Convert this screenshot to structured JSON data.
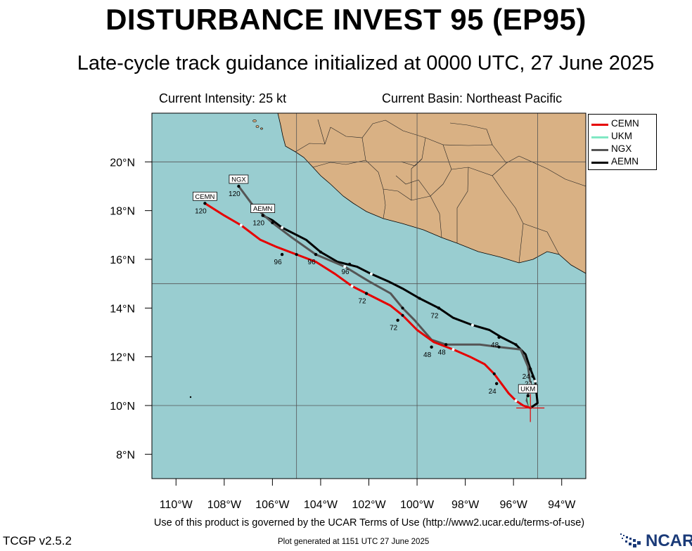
{
  "header": {
    "title": "DISTURBANCE INVEST 95 (EP95)",
    "subtitle": "Late-cycle track guidance initialized at 0000 UTC, 27 June 2025",
    "current_intensity": "Current Intensity: 25 kt",
    "current_basin": "Current Basin: Northeast Pacific"
  },
  "map": {
    "lon_range": [
      -111,
      -93
    ],
    "lat_range": [
      7,
      22
    ],
    "x_ticks": [
      {
        "lon": -110,
        "label": "110°W"
      },
      {
        "lon": -108,
        "label": "108°W"
      },
      {
        "lon": -106,
        "label": "106°W"
      },
      {
        "lon": -104,
        "label": "104°W"
      },
      {
        "lon": -102,
        "label": "102°W"
      },
      {
        "lon": -100,
        "label": "100°W"
      },
      {
        "lon": -98,
        "label": "98°W"
      },
      {
        "lon": -96,
        "label": "96°W"
      },
      {
        "lon": -94,
        "label": "94°W"
      }
    ],
    "y_ticks": [
      {
        "lat": 8,
        "label": "8°N"
      },
      {
        "lat": 10,
        "label": "10°N"
      },
      {
        "lat": 12,
        "label": "12°N"
      },
      {
        "lat": 14,
        "label": "14°N"
      },
      {
        "lat": 16,
        "label": "16°N"
      },
      {
        "lat": 18,
        "label": "18°N"
      },
      {
        "lat": 20,
        "label": "20°N"
      }
    ],
    "gridlines": {
      "lon": [
        -105,
        -100,
        -95
      ],
      "lat": [
        10,
        15,
        20
      ]
    },
    "ocean_color": "#99cdd0",
    "land_color": "#d9b184"
  },
  "legend": [
    {
      "name": "CEMN",
      "color": "#e60000"
    },
    {
      "name": "UKM",
      "color": "#80e8c4"
    },
    {
      "name": "NGX",
      "color": "#555555"
    },
    {
      "name": "AEMN",
      "color": "#000000"
    }
  ],
  "chart_data": {
    "type": "line",
    "xlabel": "",
    "ylabel": "",
    "initial_position": {
      "lon": -95.3,
      "lat": 9.9
    },
    "series": [
      {
        "name": "CEMN",
        "color": "#e60000",
        "points": [
          [
            -95.3,
            9.9
          ],
          [
            -95.6,
            10.0
          ],
          [
            -95.9,
            10.2
          ],
          [
            -96.2,
            10.5
          ],
          [
            -96.5,
            10.9
          ],
          [
            -96.8,
            11.3
          ],
          [
            -97.2,
            11.7
          ],
          [
            -97.8,
            12.0
          ],
          [
            -98.5,
            12.3
          ],
          [
            -99.3,
            12.6
          ],
          [
            -100.0,
            13.1
          ],
          [
            -100.6,
            13.7
          ],
          [
            -101.1,
            14.1
          ],
          [
            -101.9,
            14.5
          ],
          [
            -102.7,
            14.9
          ],
          [
            -103.4,
            15.4
          ],
          [
            -104.2,
            15.9
          ],
          [
            -105.0,
            16.2
          ],
          [
            -105.8,
            16.5
          ],
          [
            -106.5,
            16.8
          ],
          [
            -107.3,
            17.4
          ],
          [
            -108.0,
            17.8
          ],
          [
            -108.8,
            18.3
          ]
        ],
        "labels": [
          {
            "hour": "24",
            "lon": -96.7,
            "lat": 10.9
          },
          {
            "hour": "48",
            "lon": -99.4,
            "lat": 12.4
          },
          {
            "hour": "72",
            "lon": -100.8,
            "lat": 13.5
          },
          {
            "hour": "96",
            "lon": -105.6,
            "lat": 16.2
          },
          {
            "hour": "120",
            "lon": -108.8,
            "lat": 18.3
          }
        ]
      },
      {
        "name": "UKM",
        "color": "#80e8c4",
        "points": [
          [
            -95.3,
            9.9
          ],
          [
            -95.35,
            10.1
          ],
          [
            -95.4,
            10.4
          ]
        ],
        "labels": [
          {
            "hour": "",
            "lon": -95.4,
            "lat": 10.4
          }
        ]
      },
      {
        "name": "NGX",
        "color": "#555555",
        "points": [
          [
            -95.3,
            9.9
          ],
          [
            -95.45,
            10.2
          ],
          [
            -95.3,
            10.9
          ],
          [
            -95.4,
            11.6
          ],
          [
            -95.7,
            12.3
          ],
          [
            -96.6,
            12.4
          ],
          [
            -97.4,
            12.5
          ],
          [
            -98.3,
            12.5
          ],
          [
            -98.8,
            12.5
          ],
          [
            -99.4,
            12.7
          ],
          [
            -100.1,
            13.5
          ],
          [
            -100.6,
            14.0
          ],
          [
            -101.1,
            14.6
          ],
          [
            -102.0,
            15.1
          ],
          [
            -103.0,
            15.7
          ],
          [
            -104.2,
            16.2
          ],
          [
            -105.2,
            16.9
          ],
          [
            -106.0,
            17.5
          ],
          [
            -106.8,
            18.2
          ],
          [
            -107.4,
            19.0
          ]
        ],
        "labels": [
          {
            "hour": "24",
            "lon": -95.3,
            "lat": 11.5
          },
          {
            "hour": "48",
            "lon": -98.8,
            "lat": 12.5
          },
          {
            "hour": "72",
            "lon": -102.1,
            "lat": 14.6
          },
          {
            "hour": "96",
            "lon": -104.2,
            "lat": 16.2
          },
          {
            "hour": "120",
            "lon": -107.4,
            "lat": 19.0
          }
        ]
      },
      {
        "name": "AEMN",
        "color": "#000000",
        "points": [
          [
            -95.3,
            9.9
          ],
          [
            -95.0,
            10.1
          ],
          [
            -95.1,
            11.0
          ],
          [
            -95.3,
            11.5
          ],
          [
            -95.5,
            12.1
          ],
          [
            -95.9,
            12.5
          ],
          [
            -96.5,
            12.8
          ],
          [
            -97.0,
            13.1
          ],
          [
            -97.7,
            13.3
          ],
          [
            -98.5,
            13.6
          ],
          [
            -99.1,
            14.0
          ],
          [
            -99.9,
            14.4
          ],
          [
            -100.6,
            14.8
          ],
          [
            -101.2,
            15.1
          ],
          [
            -101.9,
            15.4
          ],
          [
            -102.5,
            15.7
          ],
          [
            -103.3,
            15.9
          ],
          [
            -104.0,
            16.3
          ],
          [
            -104.6,
            16.8
          ],
          [
            -105.0,
            17.0
          ],
          [
            -105.6,
            17.3
          ],
          [
            -106.0,
            17.6
          ],
          [
            -106.4,
            17.8
          ]
        ],
        "labels": [
          {
            "hour": "24",
            "lon": -95.2,
            "lat": 11.2
          },
          {
            "hour": "48",
            "lon": -96.6,
            "lat": 12.8
          },
          {
            "hour": "72",
            "lon": -99.1,
            "lat": 14.0
          },
          {
            "hour": "96",
            "lon": -102.8,
            "lat": 15.8
          },
          {
            "hour": "120",
            "lon": -106.4,
            "lat": 17.8
          }
        ]
      }
    ]
  },
  "footer": {
    "terms": "Use of this product is governed by the UCAR Terms of Use (http://www2.ucar.edu/terms-of-use)",
    "version": "TCGP v2.5.2",
    "generated": "Plot generated at 1151 UTC   27 June 2025",
    "logo_text": "NCAR"
  }
}
